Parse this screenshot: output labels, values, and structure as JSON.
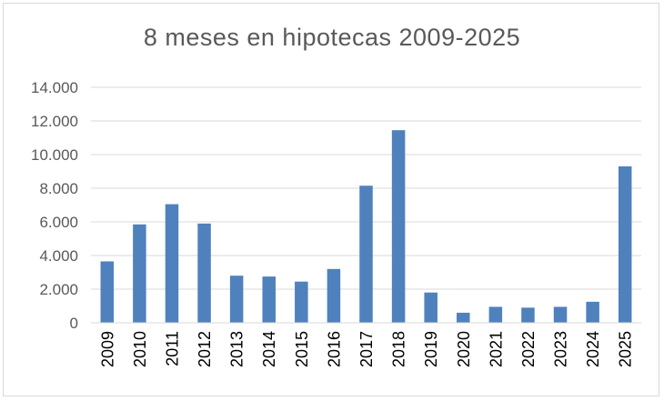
{
  "chart_data": {
    "type": "bar",
    "title": "8 meses en hipotecas 2009-2025",
    "xlabel": "",
    "ylabel": "",
    "categories": [
      "2009",
      "2010",
      "2011",
      "2012",
      "2013",
      "2014",
      "2015",
      "2016",
      "2017",
      "2018",
      "2019",
      "2020",
      "2021",
      "2022",
      "2023",
      "2024",
      "2025"
    ],
    "values": [
      3650,
      5850,
      7050,
      5900,
      2800,
      2750,
      2450,
      3200,
      8150,
      11450,
      1800,
      600,
      950,
      900,
      950,
      1250,
      9300
    ],
    "ylim": [
      0,
      14000
    ],
    "yticks": [
      0,
      2000,
      4000,
      6000,
      8000,
      10000,
      12000,
      14000
    ],
    "ytick_labels": [
      "0",
      "2.000",
      "4.000",
      "6.000",
      "8.000",
      "10.000",
      "12.000",
      "14.000"
    ],
    "grid": true,
    "legend": "none",
    "bar_color": "#4f81bd",
    "grid_color": "#d9d9d9"
  }
}
